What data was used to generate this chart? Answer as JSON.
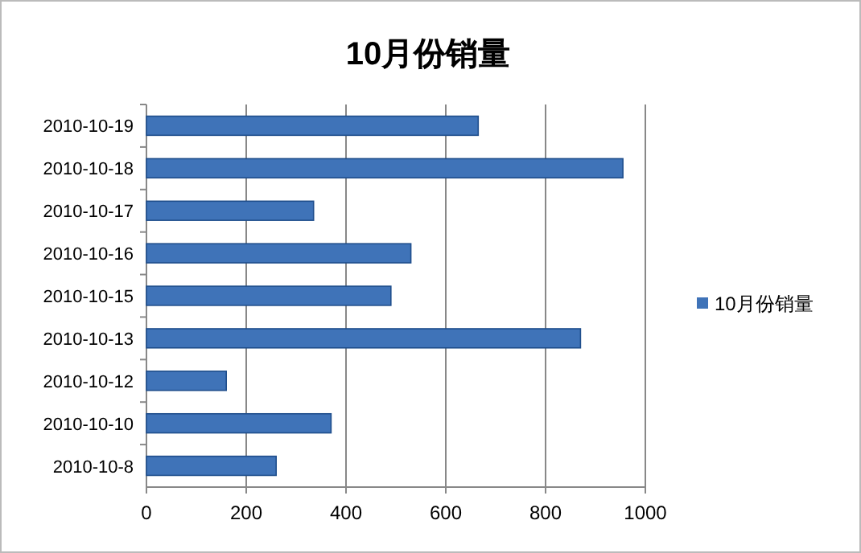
{
  "chart_data": {
    "type": "bar",
    "orientation": "horizontal",
    "title": "10月份销量",
    "categories": [
      "2010-10-19",
      "2010-10-18",
      "2010-10-17",
      "2010-10-16",
      "2010-10-15",
      "2010-10-13",
      "2010-10-12",
      "2010-10-10",
      "2010-10-8"
    ],
    "series": [
      {
        "name": "10月份销量",
        "color": "#3f73b8",
        "values": [
          665,
          955,
          335,
          530,
          490,
          870,
          160,
          370,
          260
        ]
      }
    ],
    "xlim": [
      0,
      1000
    ],
    "xticks": [
      0,
      200,
      400,
      600,
      800,
      1000
    ],
    "grid": "x",
    "legend": "right"
  }
}
